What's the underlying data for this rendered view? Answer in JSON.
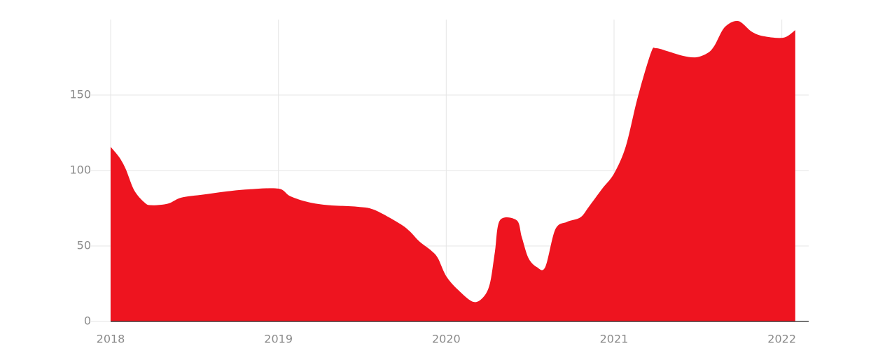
{
  "chart_data": {
    "type": "area",
    "color": "#ee141f",
    "x": [
      2018.0,
      2018.05,
      2018.09,
      2018.14,
      2018.2,
      2018.24,
      2018.34,
      2018.42,
      2018.55,
      2018.68,
      2018.82,
      2019.0,
      2019.07,
      2019.18,
      2019.3,
      2019.47,
      2019.57,
      2019.72,
      2019.78,
      2019.84,
      2019.91,
      2019.95,
      2020.0,
      2020.07,
      2020.16,
      2020.22,
      2020.26,
      2020.29,
      2020.32,
      2020.42,
      2020.45,
      2020.49,
      2020.54,
      2020.59,
      2020.65,
      2020.72,
      2020.8,
      2020.85,
      2020.93,
      2021.0,
      2021.07,
      2021.14,
      2021.22,
      2021.25,
      2021.32,
      2021.41,
      2021.49,
      2021.56,
      2021.6,
      2021.66,
      2021.74,
      2021.82,
      2021.89,
      2022.01,
      2022.08
    ],
    "values": [
      115.7,
      109,
      101,
      87,
      79,
      77,
      78,
      82,
      84,
      86,
      87.5,
      88,
      83,
      79,
      77,
      76,
      74,
      65,
      60,
      53,
      47,
      42,
      30,
      21,
      13,
      16,
      25,
      46,
      67,
      67,
      56,
      42,
      36,
      36,
      61,
      66,
      69,
      76,
      88,
      98,
      116,
      148,
      178,
      181,
      179,
      176,
      175,
      178,
      183,
      195,
      199,
      192,
      189,
      188,
      193
    ],
    "xlim": [
      2018,
      2022.16
    ],
    "xticks": [
      2018,
      2019,
      2020,
      2021,
      2022
    ],
    "ylim": [
      0,
      200
    ],
    "yticks": [
      0,
      50,
      100,
      150
    ],
    "grid": true
  }
}
